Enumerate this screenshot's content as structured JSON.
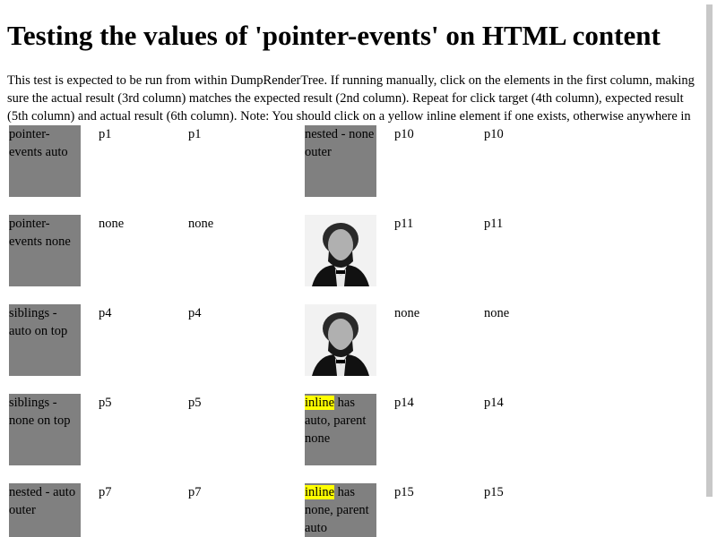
{
  "header": {
    "title": "Testing the values of 'pointer-events' on HTML content"
  },
  "intro": "This test is expected to be run from within DumpRenderTree. If running manually, click on the elements in the first column, making sure the actual result (3rd column) matches the expected result (2nd column). Repeat for click target (4th column), expected result (5th column) and actual result (6th column). Note: You should click on a yellow inline element if one exists, otherwise anywhere in",
  "rows": [
    {
      "target": "pointer-events auto",
      "expected": "p1",
      "actual": "p1",
      "target2": {
        "text": "nested - none outer"
      },
      "expected2": "p10",
      "actual2": "p10"
    },
    {
      "target": "pointer-events none",
      "expected": "none",
      "actual": "none",
      "target2": {},
      "expected2": "p11",
      "actual2": "p11"
    },
    {
      "target": "siblings - auto on top",
      "expected": "p4",
      "actual": "p4",
      "target2": {},
      "expected2": "none",
      "actual2": "none"
    },
    {
      "target": "siblings - none on top",
      "expected": "p5",
      "actual": "p5",
      "target2": {
        "inline": "inline",
        "text": "has auto, parent none"
      },
      "expected2": "p14",
      "actual2": "p14"
    },
    {
      "target": "nested - auto outer",
      "expected": "p7",
      "actual": "p7",
      "target2": {
        "inline": "inline",
        "text": "has none, parent auto"
      },
      "expected2": "p15",
      "actual2": "p15"
    }
  ]
}
